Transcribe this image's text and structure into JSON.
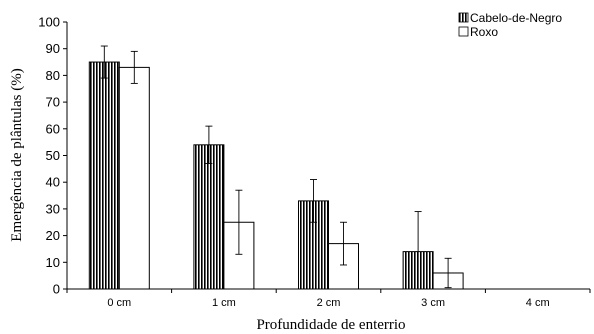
{
  "chart_data": {
    "type": "bar",
    "categories": [
      "0 cm",
      "1 cm",
      "2 cm",
      "3 cm",
      "4 cm"
    ],
    "series": [
      {
        "name": "Cabelo-de-Negro",
        "values": [
          85,
          54,
          33,
          14,
          0
        ],
        "error": [
          6,
          7,
          8,
          15,
          0
        ],
        "fill": "vertical-stripes"
      },
      {
        "name": "Roxo",
        "values": [
          83,
          25,
          17,
          6,
          0
        ],
        "error": [
          6,
          12,
          8,
          5.5,
          0
        ],
        "fill": "#ffffff"
      }
    ],
    "xlabel": "Profundidade de enterrio",
    "ylabel": "Emergência de plântulas (%)",
    "ylim": [
      0,
      100
    ],
    "yticks": [
      0,
      10,
      20,
      30,
      40,
      50,
      60,
      70,
      80,
      90,
      100
    ],
    "grid": false,
    "legend_position": "top-right",
    "error_bars": "upper and lower"
  }
}
